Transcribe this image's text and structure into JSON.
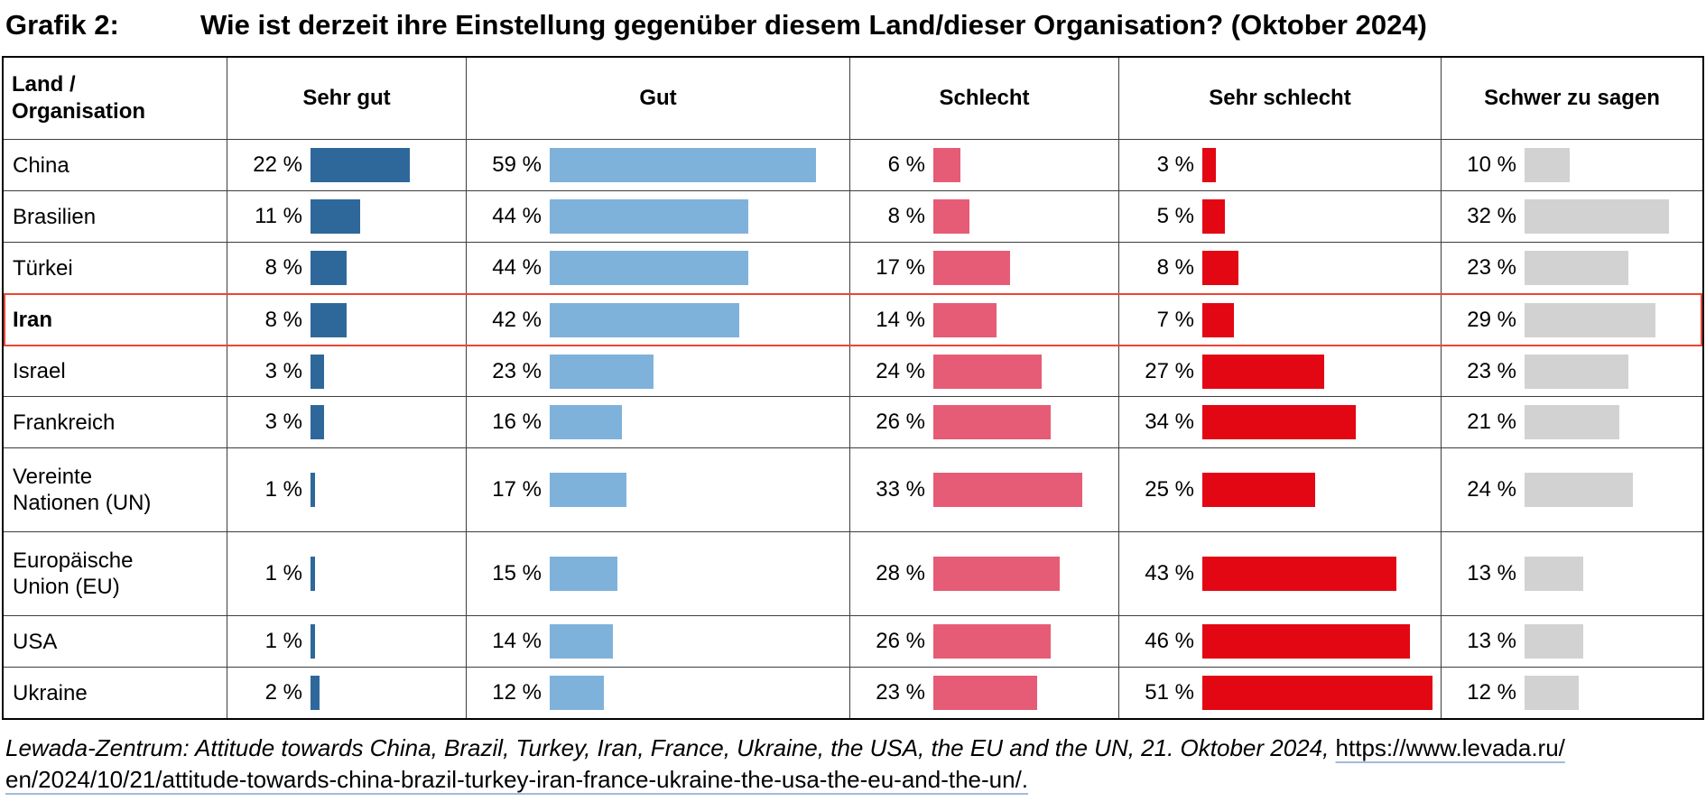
{
  "title": {
    "label": "Grafik 2:",
    "text": "Wie ist derzeit ihre Einstellung gegenüber diesem Land/dieser Organisation? (Oktober 2024)"
  },
  "chart_data": {
    "type": "table",
    "title": "Wie ist derzeit ihre Einstellung gegenüber diesem Land/dieser Organisation? (Oktober 2024)",
    "unit": "%",
    "row_header_lines": [
      "Land /",
      "Organisation"
    ],
    "categories": [
      "Sehr gut",
      "Gut",
      "Schlecht",
      "Sehr schlecht",
      "Schwer zu sagen"
    ],
    "series_colors": [
      "#2E689B",
      "#7FB2DB",
      "#E65C76",
      "#E30613",
      "#D2D2D2"
    ],
    "highlight_row": "Iran",
    "highlight_color": "#EE4434",
    "rows": [
      {
        "label": "China",
        "values": [
          22,
          59,
          6,
          3,
          10
        ]
      },
      {
        "label": "Brasilien",
        "values": [
          11,
          44,
          8,
          5,
          32
        ]
      },
      {
        "label": "Türkei",
        "values": [
          8,
          44,
          17,
          8,
          23
        ]
      },
      {
        "label": "Iran",
        "values": [
          8,
          42,
          14,
          7,
          29
        ]
      },
      {
        "label": "Israel",
        "values": [
          3,
          23,
          24,
          27,
          23
        ]
      },
      {
        "label": "Frankreich",
        "values": [
          3,
          16,
          26,
          34,
          21
        ]
      },
      {
        "label": "Vereinte Nationen (UN)",
        "label_lines": [
          "Vereinte",
          "Nationen (UN)"
        ],
        "values": [
          1,
          17,
          33,
          25,
          24
        ],
        "tall": true
      },
      {
        "label": "Europäische Union (EU)",
        "label_lines": [
          "Europäische",
          "Union (EU)"
        ],
        "values": [
          1,
          15,
          28,
          43,
          13
        ],
        "tall": true
      },
      {
        "label": "USA",
        "values": [
          1,
          14,
          26,
          46,
          13
        ]
      },
      {
        "label": "Ukraine",
        "values": [
          2,
          12,
          23,
          51,
          12
        ]
      }
    ]
  },
  "footer": {
    "line1_text": "Lewada-Zentrum: Attitude towards China, Brazil, Turkey, Iran, France, Ukraine, the USA, the EU and the UN, 21. Oktober 2024, ",
    "line1_link": "https://www.levada.ru/",
    "line2_link": "en/2024/10/21/attitude-towards-china-brazil-turkey-iran-france-ukraine-the-usa-the-eu-and-the-un/.",
    "link_underline_color": "#A2BBD8"
  }
}
